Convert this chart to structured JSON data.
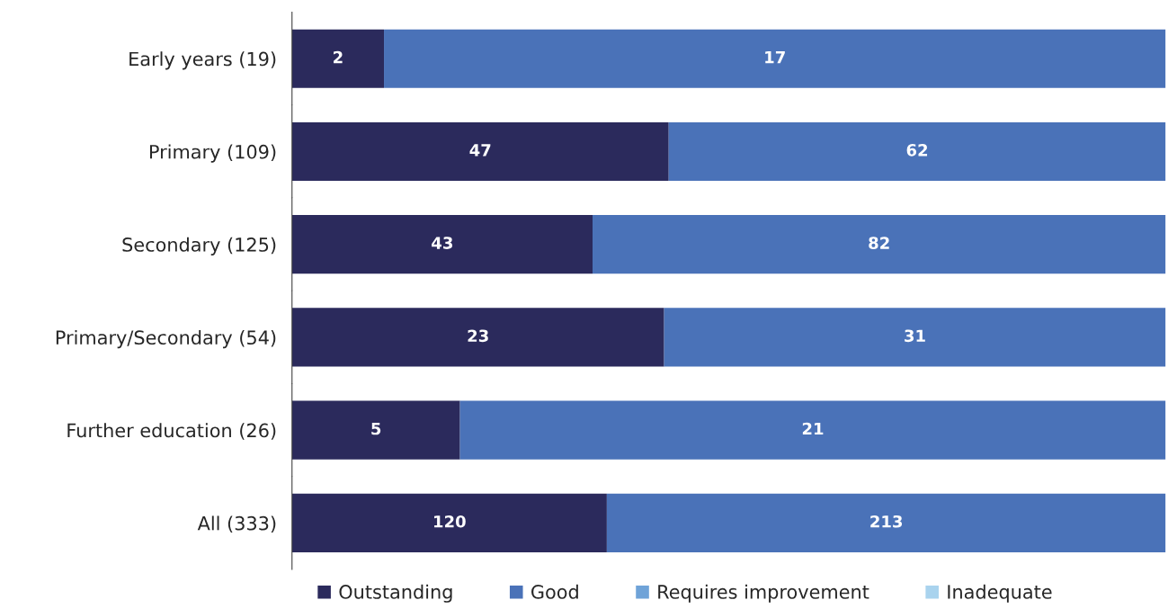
{
  "chart_data": [
    {
      "type": "bar",
      "orientation": "horizontal",
      "stacked": true,
      "categories": [
        "Early years (19)"
      ],
      "xlim": [
        0,
        19
      ],
      "tick_labels": "y",
      "data_labels": true,
      "series": [
        {
          "color": "#2b2a5c",
          "values": [
            2
          ]
        },
        {
          "color": "#4a72b8",
          "values": [
            17
          ]
        }
      ]
    },
    {
      "type": "bar",
      "orientation": "horizontal",
      "stacked": true,
      "categories": [
        "Primary (109)"
      ],
      "xlim": [
        0,
        109
      ],
      "tick_labels": "y",
      "data_labels": true,
      "series": [
        {
          "color": "#2b2a5c",
          "values": [
            47
          ]
        },
        {
          "color": "#4a72b8",
          "values": [
            62
          ]
        }
      ]
    },
    {
      "type": "bar",
      "orientation": "horizontal",
      "stacked": true,
      "categories": [
        "Secondary (125)"
      ],
      "xlim": [
        0,
        125
      ],
      "tick_labels": "y",
      "data_labels": true,
      "series": [
        {
          "color": "#2b2a5c",
          "values": [
            43
          ]
        },
        {
          "color": "#4a72b8",
          "values": [
            82
          ]
        }
      ]
    },
    {
      "type": "bar",
      "orientation": "horizontal",
      "stacked": true,
      "categories": [
        "Primary/Secondary (54)"
      ],
      "xlim": [
        0,
        54
      ],
      "tick_labels": "y",
      "data_labels": true,
      "series": [
        {
          "color": "#2b2a5c",
          "values": [
            23
          ]
        },
        {
          "color": "#4a72b8",
          "values": [
            31
          ]
        }
      ]
    },
    {
      "type": "bar",
      "orientation": "horizontal",
      "stacked": true,
      "categories": [
        "Further education (26)"
      ],
      "xlim": [
        0,
        26
      ],
      "tick_labels": "y",
      "data_labels": true,
      "series": [
        {
          "color": "#2b2a5c",
          "values": [
            5
          ]
        },
        {
          "color": "#4a72b8",
          "values": [
            21
          ]
        }
      ]
    },
    {
      "type": "bar",
      "orientation": "horizontal",
      "stacked": true,
      "categories": [
        "All (333)"
      ],
      "xlim": [
        0,
        333
      ],
      "tick_labels": "y",
      "data_labels": true,
      "legend": "bottom",
      "series": [
        {
          "name": "Outstanding",
          "color": "#2b2a5c",
          "values": [
            120
          ]
        },
        {
          "name": "Good",
          "color": "#4a72b8",
          "values": [
            213
          ]
        },
        {
          "name": "Requires improvement",
          "color": "#6fa3d8",
          "values": [
            null
          ]
        },
        {
          "name": "Inadequate",
          "color": "#a9d3ee",
          "values": [
            null
          ]
        }
      ]
    }
  ]
}
